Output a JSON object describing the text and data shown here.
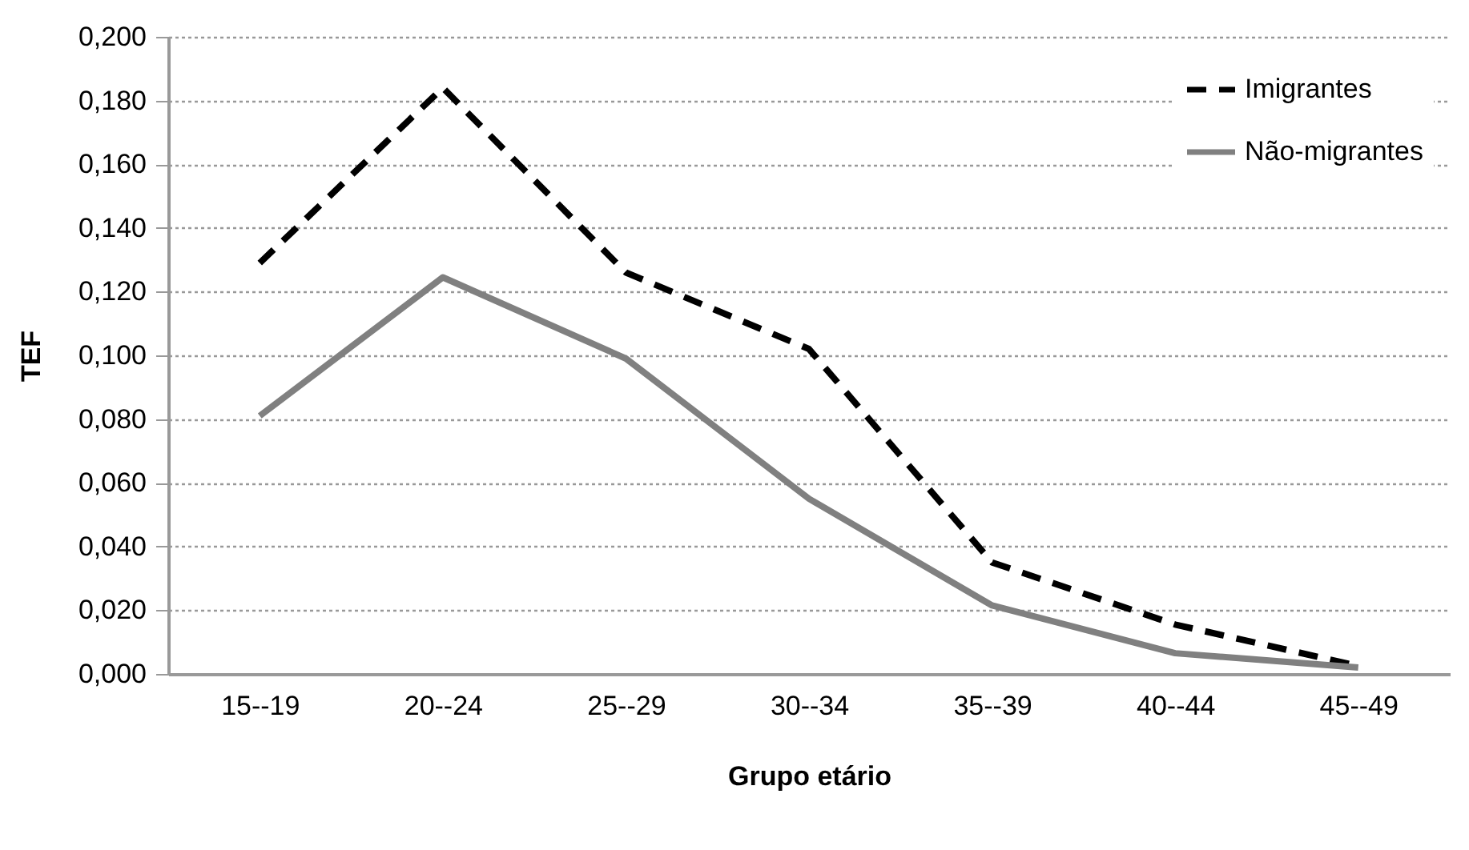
{
  "chart_data": {
    "type": "line",
    "xlabel": "Grupo etário",
    "ylabel": "TEF",
    "categories": [
      "15--19",
      "20--24",
      "25--29",
      "30--34",
      "35--39",
      "40--44",
      "45--49"
    ],
    "series": [
      {
        "name": "Imigrantes",
        "color": "#000000",
        "line_style": "dashed",
        "values": [
          0.129,
          0.184,
          0.126,
          0.102,
          0.035,
          0.0155,
          0.0025
        ]
      },
      {
        "name": "Não-migrantes",
        "color": "#808080",
        "line_style": "solid",
        "values": [
          0.081,
          0.1245,
          0.099,
          0.055,
          0.0215,
          0.0065,
          0.002
        ]
      }
    ],
    "ylim": [
      0,
      0.2
    ],
    "yticks": [
      {
        "value": 0,
        "label": "0,000"
      },
      {
        "value": 0.02,
        "label": "0,020"
      },
      {
        "value": 0.04,
        "label": "0,040"
      },
      {
        "value": 0.06,
        "label": "0,060"
      },
      {
        "value": 0.08,
        "label": "0,080"
      },
      {
        "value": 0.1,
        "label": "0,100"
      },
      {
        "value": 0.12,
        "label": "0,120"
      },
      {
        "value": 0.14,
        "label": "0,140"
      },
      {
        "value": 0.16,
        "label": "0,160"
      },
      {
        "value": 0.18,
        "label": "0,180"
      },
      {
        "value": 0.2,
        "label": "0,200"
      }
    ],
    "grid": "y",
    "legend": "top right",
    "marker": "none"
  }
}
